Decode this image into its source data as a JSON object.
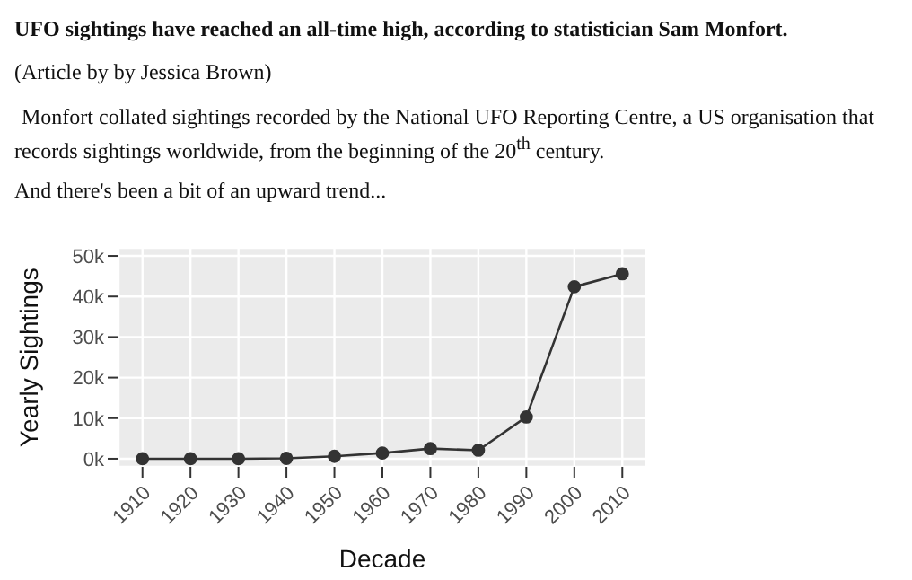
{
  "chart_data": {
    "type": "line",
    "title": "UFO sightings have reached an all-time high, according to statistician Sam Monfort.",
    "subtitle": "(Article by by Jessica Brown)",
    "annotations": [
      "Monfort collated sightings recorded by the National UFO Reporting Centre, a US organisation that records sightings worldwide, from the beginning of the 20$^{th}$ century.",
      "And there's been a bit of an upward trend..."
    ],
    "xlabel": "Decade",
    "ylabel": "Yearly Sightings",
    "x": [
      1910,
      1920,
      1930,
      1940,
      1950,
      1960,
      1970,
      1980,
      1990,
      2000,
      2010
    ],
    "series": [
      {
        "color": "#333333",
        "values": [
          0,
          0,
          0,
          100,
          600,
          1400,
          2500,
          2100,
          10300,
          42400,
          45600
        ]
      }
    ],
    "xlim": [
      1905,
      2015
    ],
    "xticks": [
      1910,
      1920,
      1930,
      1940,
      1950,
      1960,
      1970,
      1980,
      1990,
      2000,
      2010
    ],
    "ylim": [
      -2000,
      52000
    ],
    "yticks": [
      {
        "value": 0,
        "label": "0k"
      },
      {
        "value": 10000,
        "label": "10k"
      },
      {
        "value": 20000,
        "label": "20k"
      },
      {
        "value": 30000,
        "label": "30k"
      },
      {
        "value": 40000,
        "label": "40k"
      },
      {
        "value": 50000,
        "label": "50k"
      }
    ],
    "grid": true,
    "marker": "circle",
    "line_style": "solid",
    "legend": false
  }
}
